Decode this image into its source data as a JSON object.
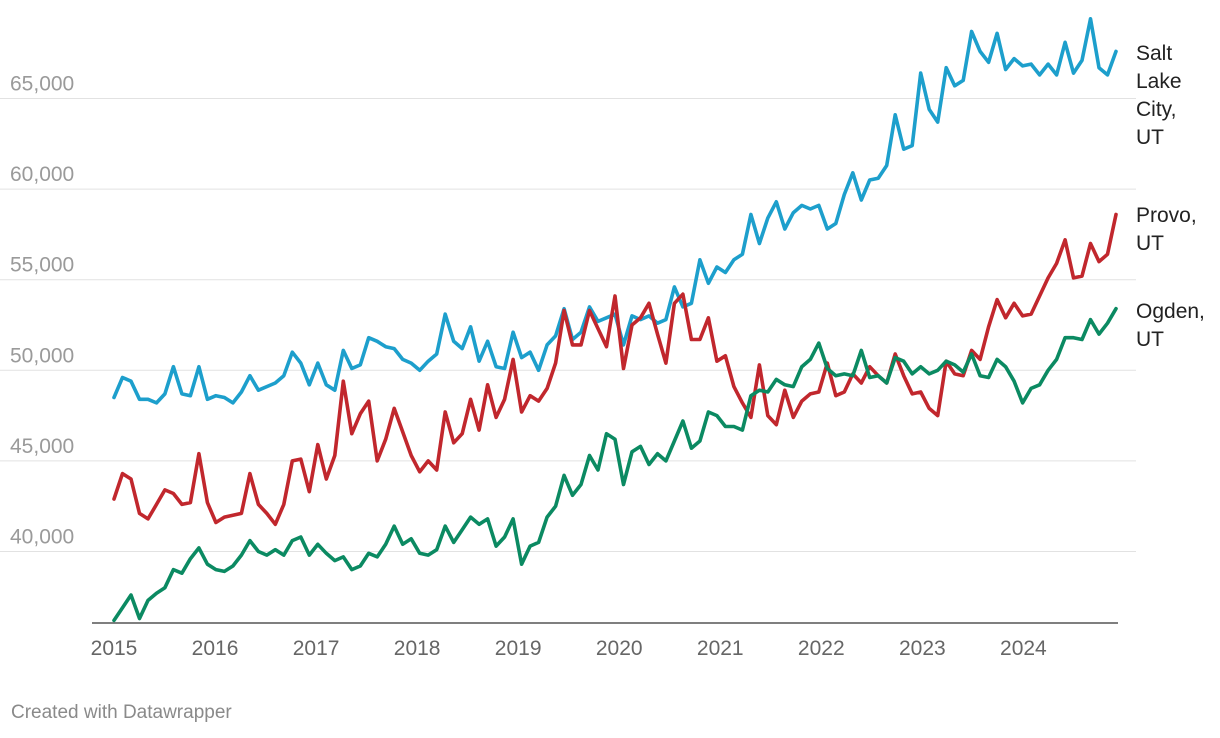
{
  "credit": "Created with Datawrapper",
  "chart_data": {
    "type": "line",
    "x_start": "2015-01",
    "x_end": "2024-12",
    "x_ticks": [
      "2015",
      "2016",
      "2017",
      "2018",
      "2019",
      "2020",
      "2021",
      "2022",
      "2023",
      "2024"
    ],
    "y_ticks": [
      40000,
      45000,
      50000,
      55000,
      60000,
      65000
    ],
    "y_tick_labels": [
      "40,000",
      "45,000",
      "50,000",
      "55,000",
      "60,000",
      "65,000"
    ],
    "ylim": [
      36000,
      69400
    ],
    "grid": true,
    "series": [
      {
        "name": "Salt Lake City, UT",
        "label_lines": [
          "Salt",
          "Lake",
          "City,",
          "UT"
        ],
        "color": "#1d9fcc",
        "values": [
          48500,
          49600,
          49400,
          48400,
          48400,
          48200,
          48700,
          50200,
          48700,
          48600,
          50200,
          48400,
          48600,
          48500,
          48200,
          48800,
          49700,
          48900,
          49100,
          49300,
          49700,
          51000,
          50400,
          49200,
          50400,
          49200,
          48900,
          51100,
          50100,
          50300,
          51800,
          51600,
          51300,
          51200,
          50600,
          50400,
          50000,
          50500,
          50900,
          53100,
          51600,
          51200,
          52400,
          50500,
          51600,
          50200,
          50100,
          52100,
          50700,
          51000,
          50000,
          51400,
          51900,
          53400,
          51700,
          52100,
          53500,
          52700,
          52900,
          53100,
          51400,
          53000,
          52800,
          53000,
          52600,
          52800,
          54600,
          53500,
          53700,
          56100,
          54800,
          55700,
          55400,
          56100,
          56400,
          58600,
          57000,
          58400,
          59300,
          57800,
          58700,
          59100,
          58900,
          59100,
          57800,
          58100,
          59700,
          60900,
          59400,
          60500,
          60600,
          61300,
          64100,
          62200,
          62400,
          66400,
          64400,
          63700,
          66700,
          65700,
          66000,
          68700,
          67600,
          67000,
          68600,
          66600,
          67200,
          66800,
          66900,
          66300,
          66900,
          66300,
          68100,
          66400,
          67100,
          69400,
          66700,
          66300,
          67600
        ]
      },
      {
        "name": "Provo, UT",
        "label_lines": [
          "Provo,",
          "UT"
        ],
        "color": "#c1272d",
        "values": [
          42900,
          44300,
          44000,
          42100,
          41800,
          42600,
          43400,
          43200,
          42600,
          42700,
          45400,
          42700,
          41600,
          41900,
          42000,
          42100,
          44300,
          42600,
          42100,
          41500,
          42600,
          45000,
          45100,
          43300,
          45900,
          44000,
          45300,
          49400,
          46500,
          47600,
          48300,
          45000,
          46200,
          47900,
          46600,
          45300,
          44400,
          45000,
          44500,
          47700,
          46000,
          46500,
          48400,
          46700,
          49200,
          47400,
          48400,
          50600,
          47700,
          48600,
          48300,
          49000,
          50400,
          53300,
          51400,
          51400,
          53300,
          52300,
          51300,
          54100,
          50100,
          52500,
          52900,
          53700,
          52000,
          50400,
          53700,
          54200,
          51700,
          51700,
          52900,
          50500,
          50800,
          49100,
          48200,
          47400,
          50300,
          47500,
          47000,
          48900,
          47400,
          48300,
          48700,
          48800,
          50400,
          48600,
          48800,
          49800,
          49300,
          50200,
          49700,
          49300,
          50900,
          49700,
          48700,
          48800,
          47900,
          47500,
          50500,
          49800,
          49700,
          51100,
          50600,
          52400,
          53900,
          52900,
          53700,
          53000,
          53100,
          54100,
          55100,
          55900,
          57200,
          55100,
          55200,
          57000,
          56000,
          56400,
          58600
        ]
      },
      {
        "name": "Ogden, UT",
        "label_lines": [
          "Ogden,",
          "UT"
        ],
        "color": "#0b8a62",
        "values": [
          36200,
          36900,
          37600,
          36300,
          37300,
          37700,
          38000,
          39000,
          38800,
          39600,
          40200,
          39300,
          39000,
          38900,
          39200,
          39800,
          40600,
          40000,
          39800,
          40100,
          39800,
          40600,
          40800,
          39800,
          40400,
          39900,
          39500,
          39700,
          39000,
          39200,
          39900,
          39700,
          40400,
          41400,
          40400,
          40700,
          39900,
          39800,
          40100,
          41400,
          40500,
          41200,
          41900,
          41500,
          41800,
          40300,
          40800,
          41800,
          39300,
          40300,
          40500,
          41900,
          42500,
          44200,
          43100,
          43700,
          45300,
          44500,
          46500,
          46200,
          43700,
          45500,
          45800,
          44800,
          45400,
          45000,
          46100,
          47200,
          45700,
          46100,
          47700,
          47500,
          46900,
          46900,
          46700,
          48600,
          48900,
          48800,
          49500,
          49200,
          49100,
          50200,
          50600,
          51500,
          50100,
          49700,
          49800,
          49700,
          51100,
          49600,
          49700,
          49300,
          50700,
          50500,
          49800,
          50200,
          49800,
          50000,
          50500,
          50300,
          49900,
          50900,
          49700,
          49600,
          50600,
          50200,
          49400,
          48200,
          49000,
          49200,
          50000,
          50600,
          51800,
          51800,
          51700,
          52800,
          52000,
          52600,
          53400
        ]
      }
    ]
  }
}
